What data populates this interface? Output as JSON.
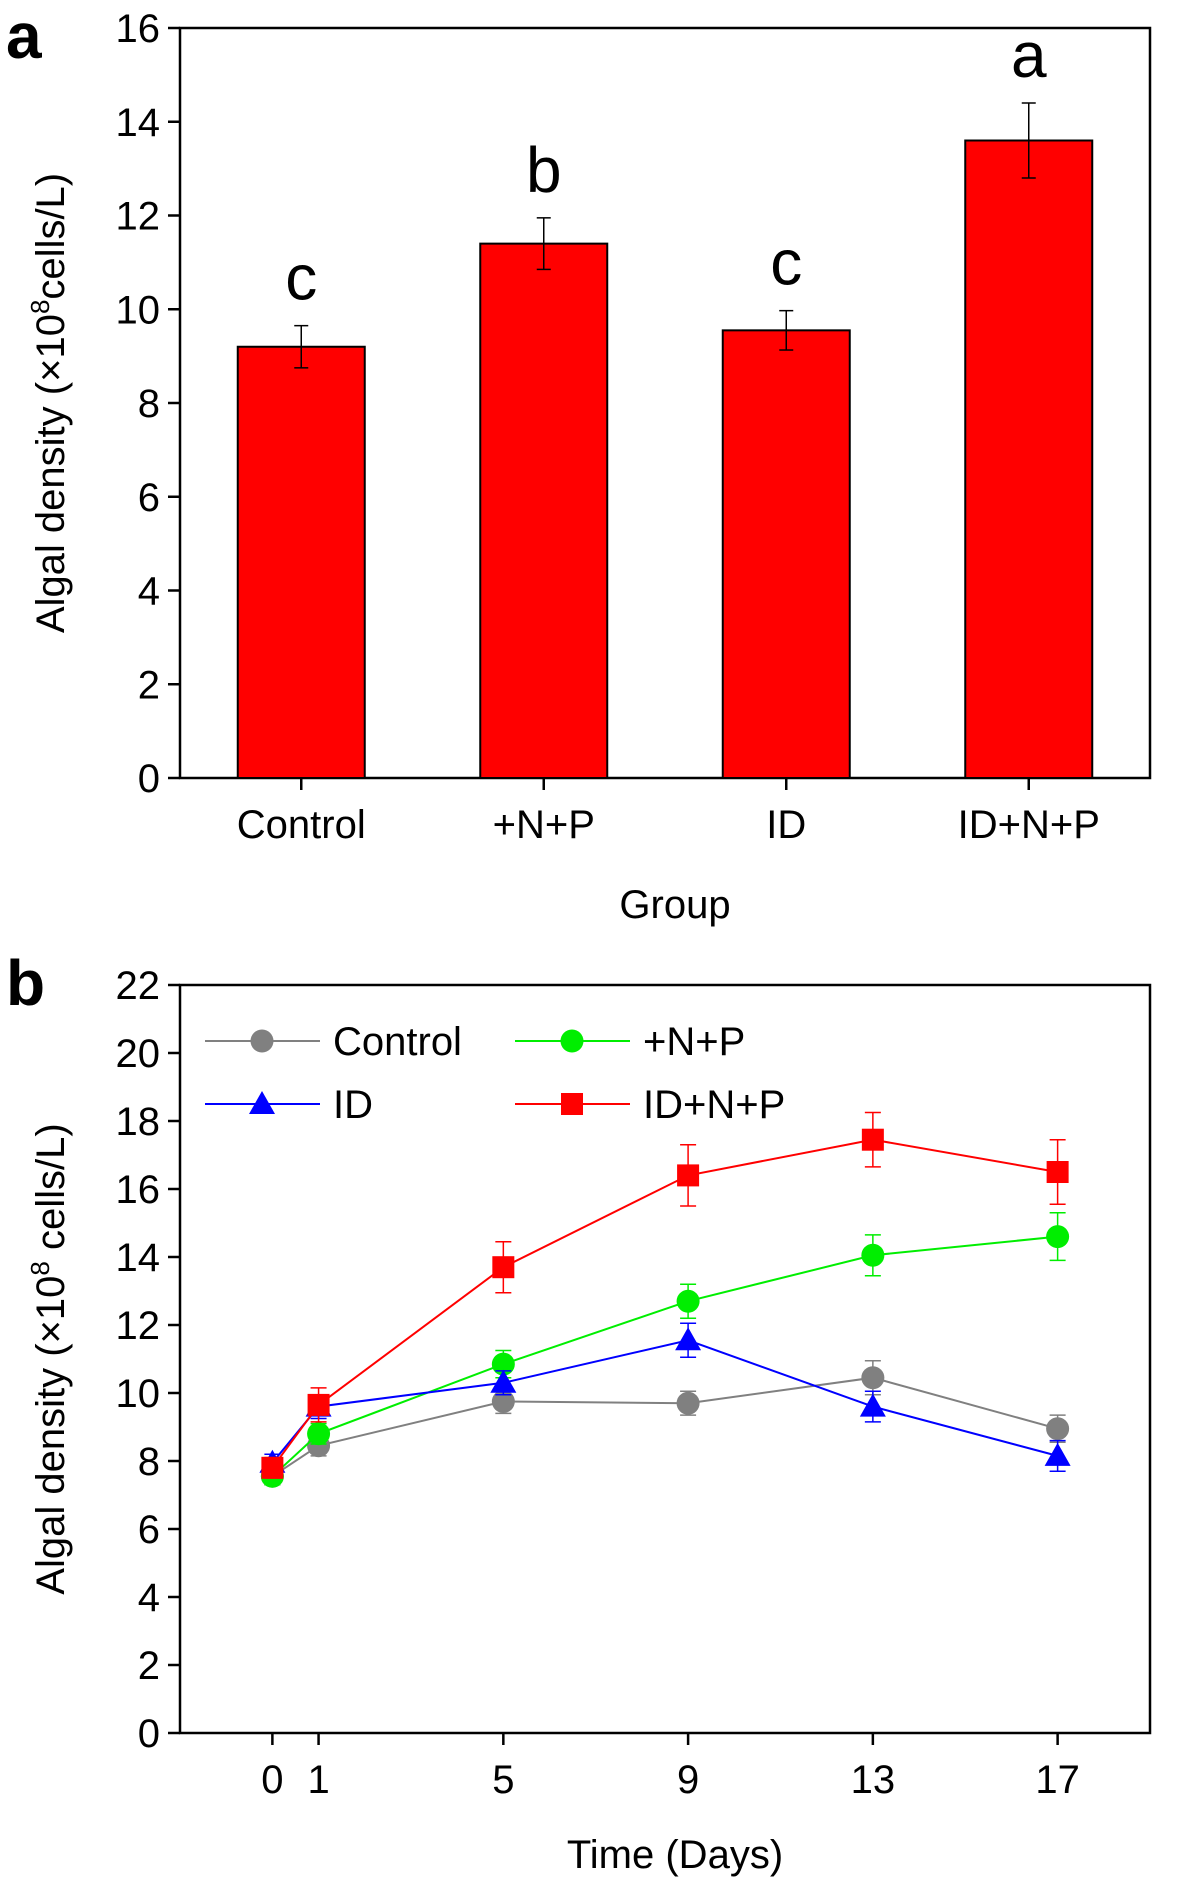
{
  "colors": {
    "bar_fill": "#ff0000",
    "control": "#808080",
    "np": "#00ee00",
    "id": "#0000ff",
    "idnp": "#ff0000"
  },
  "chart_data": [
    {
      "panel": "a",
      "type": "bar",
      "categories": [
        "Control",
        "+N+P",
        "ID",
        "ID+N+P"
      ],
      "values": [
        9.2,
        11.4,
        9.55,
        13.6
      ],
      "errors": [
        0.45,
        0.55,
        0.42,
        0.8
      ],
      "significance": [
        "c",
        "b",
        "c",
        "a"
      ],
      "xlabel": "Group",
      "ylabel_prefix": "Algal density (×10",
      "ylabel_sup": "8",
      "ylabel_suffix": "cells/L)",
      "ylim": [
        0,
        16
      ],
      "yticks": [
        0,
        2,
        4,
        6,
        8,
        10,
        12,
        14,
        16
      ],
      "grid": false
    },
    {
      "panel": "b",
      "type": "line",
      "x": [
        0,
        1,
        5,
        9,
        13,
        17
      ],
      "series": [
        {
          "name": "Control",
          "marker": "circle",
          "values": [
            7.55,
            8.45,
            9.75,
            9.7,
            10.45,
            8.95
          ],
          "errors": [
            0.25,
            0.3,
            0.35,
            0.35,
            0.5,
            0.4
          ]
        },
        {
          "name": "+N+P",
          "marker": "circle",
          "values": [
            7.55,
            8.8,
            10.85,
            12.7,
            14.05,
            14.6
          ],
          "errors": [
            0.25,
            0.3,
            0.4,
            0.5,
            0.6,
            0.7
          ]
        },
        {
          "name": "ID",
          "marker": "triangle",
          "values": [
            7.95,
            9.6,
            10.3,
            11.55,
            9.6,
            8.15
          ],
          "errors": [
            0.25,
            0.35,
            0.35,
            0.5,
            0.45,
            0.45
          ]
        },
        {
          "name": "ID+N+P",
          "marker": "square",
          "values": [
            7.8,
            9.65,
            13.7,
            16.4,
            17.45,
            16.5
          ],
          "errors": [
            0.3,
            0.5,
            0.75,
            0.9,
            0.8,
            0.95
          ]
        }
      ],
      "xlabel": "Time (Days)",
      "ylabel_prefix": "Algal density (×10",
      "ylabel_sup": "8",
      "ylabel_suffix": " cells/L)",
      "xticks": [
        0,
        1,
        5,
        9,
        13,
        17
      ],
      "xlim": [
        -2,
        19
      ],
      "ylim": [
        0,
        22
      ],
      "yticks": [
        0,
        2,
        4,
        6,
        8,
        10,
        12,
        14,
        16,
        18,
        20,
        22
      ],
      "legend_position": "top-left",
      "grid": false
    }
  ]
}
